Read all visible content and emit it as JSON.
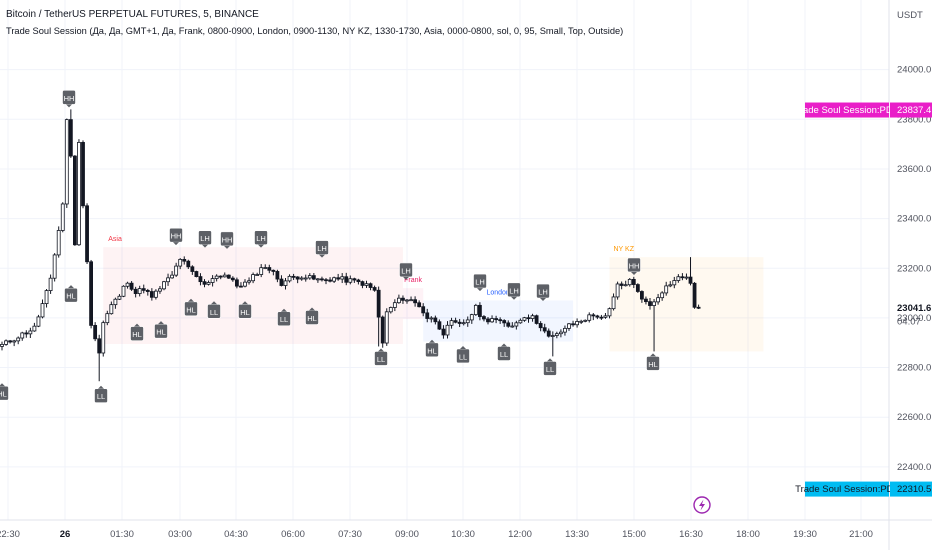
{
  "header": {
    "title": "Bitcoin / TetherUS PERPETUAL FUTURES, 5, BINANCE",
    "indicator": "Trade Soul Session (Да, Да, GMT+1, Да, Frank, 0800-0900, London, 0900-1130, NY KZ, 1330-1730, Asia, 0000-0800, sol, 0, 95, Small, Top, Outside)"
  },
  "chart_data": {
    "type": "candlestick",
    "symbol": "BTCUSDT.P",
    "currency_label": "USDT",
    "y_ticks": [
      "24000.0",
      "23800.0",
      "23600.0",
      "23400.0",
      "23200.0",
      "23000.0",
      "22800.0",
      "22600.0",
      "22400.0"
    ],
    "y_tick_values": [
      24000,
      23800,
      23600,
      23400,
      23200,
      23000,
      22800,
      22600,
      22400
    ],
    "ylim": [
      22190,
      24200
    ],
    "x_ticks": [
      "22:30",
      "26",
      "01:30",
      "03:00",
      "04:30",
      "06:00",
      "07:30",
      "09:00",
      "10:30",
      "12:00",
      "13:30",
      "15:00",
      "16:30",
      "18:00",
      "19:30",
      "21:00"
    ],
    "bold_tick": "26",
    "current_price": "23041.6",
    "countdown": "04:07",
    "pdh_label": "Trade Soul Session:PDH",
    "pdh_value": "23837.4",
    "pdh_price": 23837.4,
    "pdl_label": "Trade Soul Session:PDL",
    "pdl_value": "22310.5",
    "pdl_price": 22310.5,
    "sessions": [
      {
        "name": "Asia",
        "color": "#f23645",
        "top": 23285,
        "bottom": 22895
      },
      {
        "name": "Frank",
        "color": "#e91e63",
        "top": 23120,
        "bottom": 22995
      },
      {
        "name": "London",
        "color": "#2962ff",
        "top": 23070,
        "bottom": 22905
      },
      {
        "name": "NY KZ",
        "color": "#ff9800",
        "top": 23245,
        "bottom": 22865
      }
    ],
    "swing_labels": [
      {
        "text": "HL",
        "price": 22745,
        "dir": "below"
      },
      {
        "text": "HH",
        "price": 23840,
        "dir": "above"
      },
      {
        "text": "HL",
        "price": 23140,
        "dir": "below"
      },
      {
        "text": "LL",
        "price": 22735,
        "dir": "below"
      },
      {
        "text": "HL",
        "price": 22985,
        "dir": "below"
      },
      {
        "text": "HL",
        "price": 22995,
        "dir": "below"
      },
      {
        "text": "HH",
        "price": 23285,
        "dir": "above"
      },
      {
        "text": "LH",
        "price": 23275,
        "dir": "above"
      },
      {
        "text": "HL",
        "price": 23085,
        "dir": "below"
      },
      {
        "text": "LL",
        "price": 23075,
        "dir": "below"
      },
      {
        "text": "HH",
        "price": 23270,
        "dir": "above"
      },
      {
        "text": "HL",
        "price": 23075,
        "dir": "below"
      },
      {
        "text": "LH",
        "price": 23275,
        "dir": "above"
      },
      {
        "text": "LL",
        "price": 23045,
        "dir": "below"
      },
      {
        "text": "HL",
        "price": 23050,
        "dir": "below"
      },
      {
        "text": "LH",
        "price": 23235,
        "dir": "above"
      },
      {
        "text": "LL",
        "price": 22885,
        "dir": "below"
      },
      {
        "text": "LH",
        "price": 23145,
        "dir": "above"
      },
      {
        "text": "HL",
        "price": 22920,
        "dir": "below"
      },
      {
        "text": "LL",
        "price": 22895,
        "dir": "below"
      },
      {
        "text": "LH",
        "price": 23100,
        "dir": "above"
      },
      {
        "text": "LL",
        "price": 22905,
        "dir": "below"
      },
      {
        "text": "LH",
        "price": 23065,
        "dir": "above"
      },
      {
        "text": "LH",
        "price": 23060,
        "dir": "above"
      },
      {
        "text": "LL",
        "price": 22845,
        "dir": "below"
      },
      {
        "text": "HH",
        "price": 23165,
        "dir": "above"
      },
      {
        "text": "HL",
        "price": 22865,
        "dir": "below"
      }
    ],
    "colors": {
      "candle": "#131722",
      "up": "#ffffff",
      "pdh": "#e91ec8",
      "pdl": "#00bcf2",
      "badge": "#5d6066",
      "grid": "#f0f3fa",
      "session_icon": "#9c27b0"
    }
  }
}
